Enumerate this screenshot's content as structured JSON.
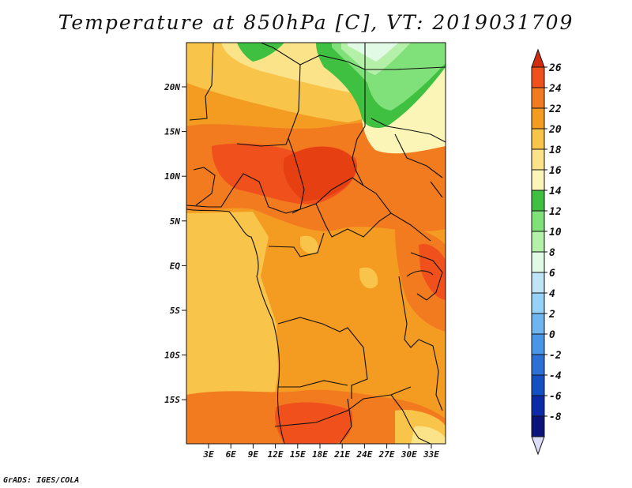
{
  "title": "Temperature at 850hPa [C], VT: 2019031709",
  "footer": "GrADS: IGES/COLA",
  "map": {
    "lat_labels": [
      "20N",
      "15N",
      "10N",
      "5N",
      "EQ",
      "5S",
      "10S",
      "15S"
    ],
    "lon_labels": [
      "3E",
      "6E",
      "9E",
      "12E",
      "15E",
      "18E",
      "21E",
      "24E",
      "27E",
      "30E",
      "33E"
    ]
  },
  "colorbar": {
    "labels": [
      "26",
      "24",
      "22",
      "20",
      "18",
      "16",
      "14",
      "12",
      "10",
      "8",
      "6",
      "4",
      "2",
      "0",
      "-2",
      "-4",
      "-6",
      "-8"
    ],
    "colors": [
      "#d42a0d",
      "#f0501c",
      "#f27b1f",
      "#f49b22",
      "#f9c44a",
      "#fbe38a",
      "#fbf6b7",
      "#40c040",
      "#80e07a",
      "#b5f0a8",
      "#e0fae6",
      "#bfe4f6",
      "#96d2f8",
      "#6fb6f0",
      "#4a96e6",
      "#2c70d6",
      "#1450c2",
      "#0c2aa8",
      "#0a1478",
      "#dcdcf8"
    ]
  }
}
